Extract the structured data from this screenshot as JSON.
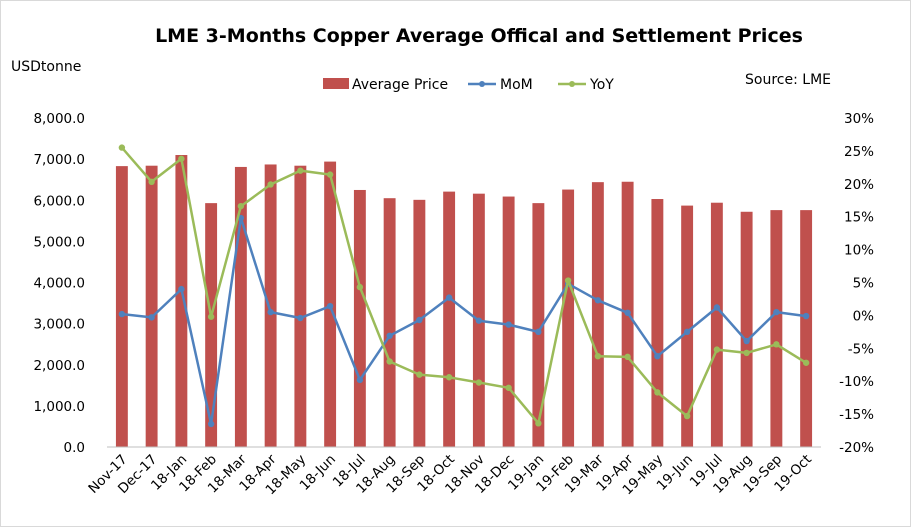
{
  "chart_data": {
    "type": "bar",
    "title": "LME 3-Months Copper  Average Offical and Settlement Prices",
    "ylabel": "USDtonne",
    "source": "Source: LME",
    "legend_position": "top",
    "grid": false,
    "categories": [
      "Nov-17",
      "Dec-17",
      "18-Jan",
      "18-Feb",
      "18-Mar",
      "18-Apr",
      "18-May",
      "18-Jun",
      "18-Jul",
      "18-Aug",
      "18-Sep",
      "18-Oct",
      "18-Nov",
      "18-Dec",
      "19-Jan",
      "19-Feb",
      "19-Mar",
      "19-Apr",
      "19-May",
      "19-Jun",
      "19-Jul",
      "19-Aug",
      "19-Sep",
      "19-Oct"
    ],
    "y_left": {
      "min": 0,
      "max": 8000,
      "ticks": [
        0,
        1000,
        2000,
        3000,
        4000,
        5000,
        6000,
        7000,
        8000
      ],
      "tick_labels": [
        "0.0",
        "1,000.0",
        "2,000.0",
        "3,000.0",
        "4,000.0",
        "5,000.0",
        "6,000.0",
        "7,000.0",
        "8,000.0"
      ]
    },
    "y_right": {
      "min": -20,
      "max": 30,
      "ticks": [
        -20,
        -15,
        -10,
        -5,
        0,
        5,
        10,
        15,
        20,
        25,
        30
      ],
      "tick_labels": [
        "-20%",
        "-15%",
        "-10%",
        "-5%",
        "0%",
        "5%",
        "10%",
        "15%",
        "20%",
        "25%",
        "30%"
      ]
    },
    "series": [
      {
        "name": "Average Price",
        "type": "bar",
        "axis": "left",
        "color": "#c0504d",
        "values": [
          6830,
          6840,
          7100,
          5930,
          6810,
          6870,
          6840,
          6940,
          6250,
          6050,
          6010,
          6210,
          6160,
          6090,
          5930,
          6260,
          6440,
          6450,
          6030,
          5870,
          5940,
          5720,
          5760,
          5760
        ]
      },
      {
        "name": "MoM",
        "type": "line",
        "axis": "right",
        "color": "#4f81bd",
        "values": [
          0.2,
          -0.3,
          4.0,
          -16.5,
          14.8,
          0.5,
          -0.4,
          1.4,
          -9.8,
          -3.1,
          -0.7,
          2.7,
          -0.8,
          -1.4,
          -2.5,
          4.8,
          2.3,
          0.4,
          -6.2,
          -2.5,
          1.2,
          -3.9,
          0.5,
          -0.1
        ]
      },
      {
        "name": "YoY",
        "type": "line",
        "axis": "right",
        "color": "#9bbb59",
        "values": [
          25.5,
          20.3,
          23.8,
          -0.2,
          16.6,
          19.9,
          22.0,
          21.4,
          4.3,
          -7.0,
          -9.0,
          -9.4,
          -10.2,
          -11.0,
          -16.4,
          5.3,
          -6.2,
          -6.3,
          -11.7,
          -15.3,
          -5.2,
          -5.7,
          -4.4,
          -7.2
        ]
      }
    ]
  }
}
